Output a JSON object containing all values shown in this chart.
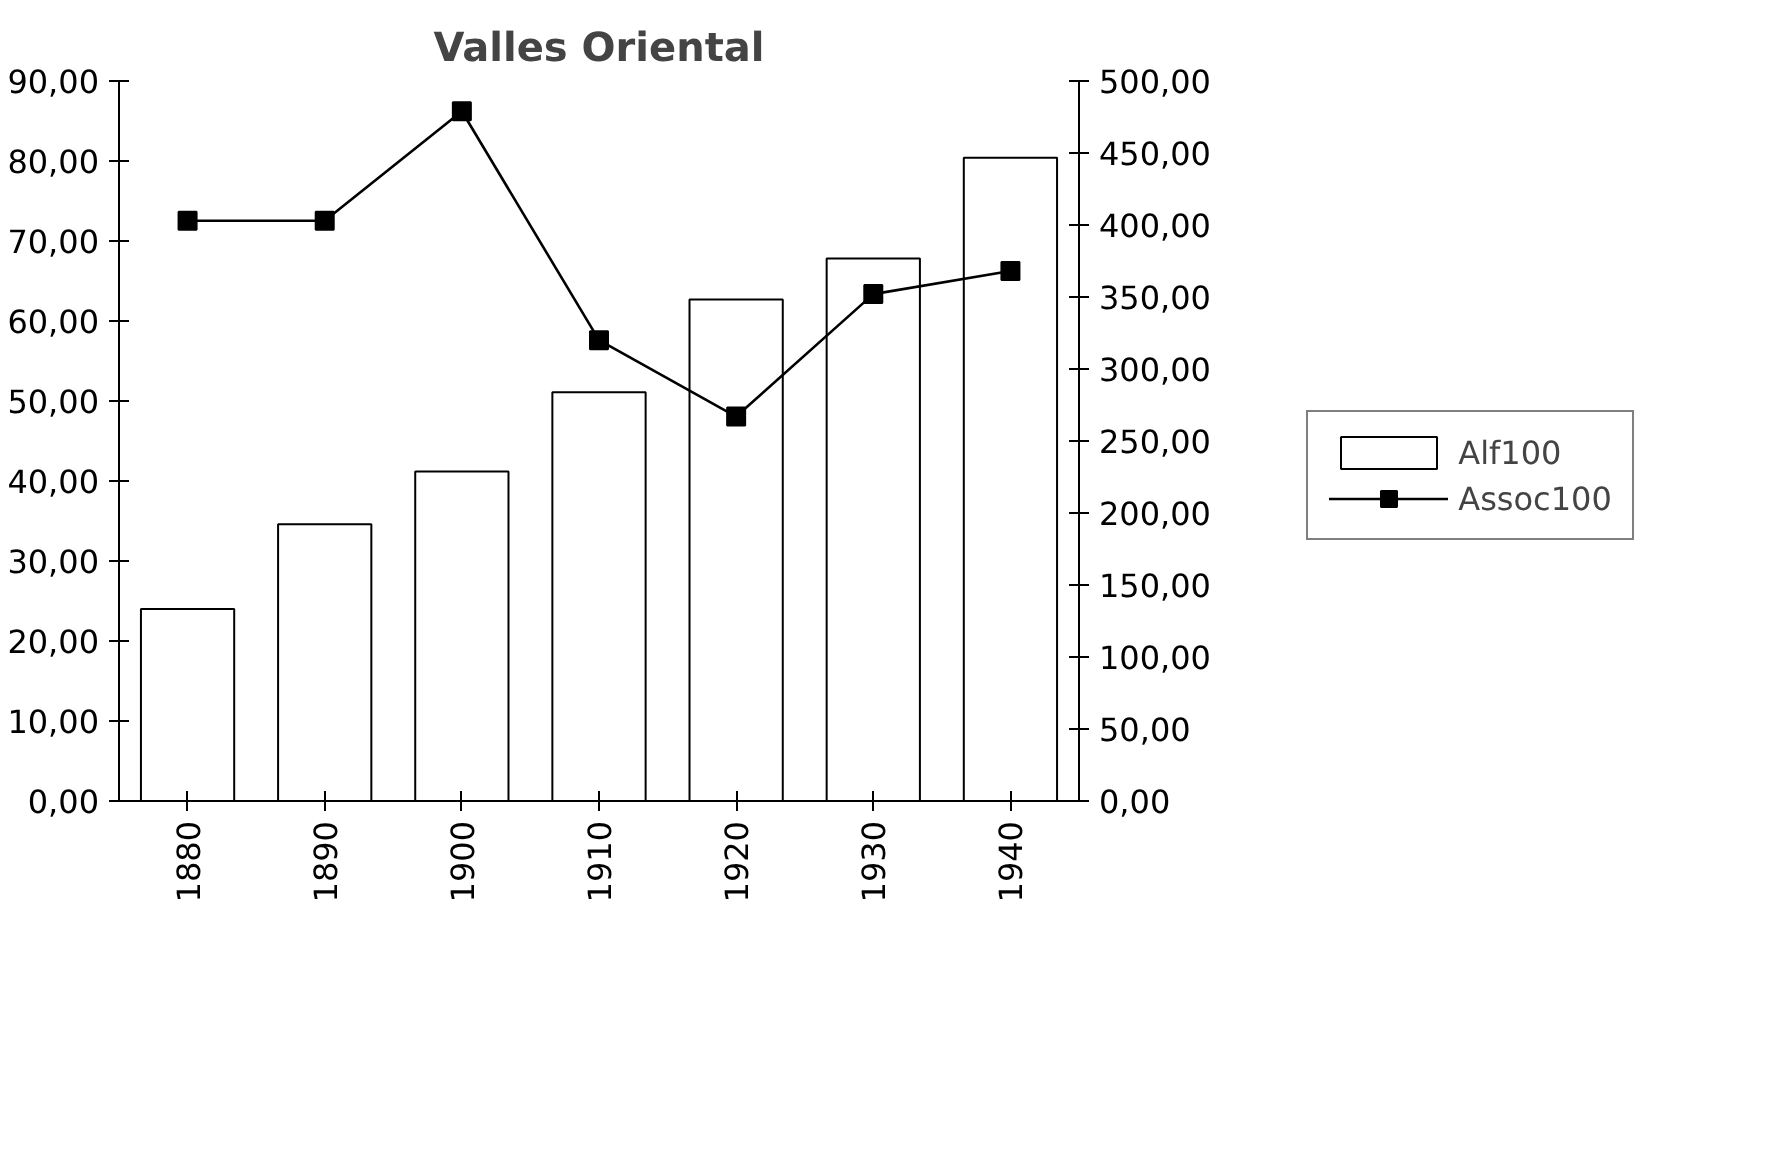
{
  "chart_data": {
    "type": "bar",
    "title": "Valles Oriental",
    "categories": [
      "1880",
      "1890",
      "1900",
      "1910",
      "1920",
      "1930",
      "1940"
    ],
    "series": [
      {
        "name": "Alf100",
        "color": "#ffffff",
        "values": [
          24.0,
          34.6,
          41.2,
          51.1,
          62.7,
          67.8,
          80.4
        ]
      },
      {
        "name": "Assoc100",
        "type": "line",
        "axis": "y2",
        "color": "#000000",
        "values": [
          403,
          403,
          479,
          320,
          267,
          352,
          368
        ]
      }
    ],
    "ylim": [
      0,
      90
    ],
    "yticks": [
      {
        "value": 0,
        "label": "0,00"
      },
      {
        "value": 10,
        "label": "10,00"
      },
      {
        "value": 20,
        "label": "20,00"
      },
      {
        "value": 30,
        "label": "30,00"
      },
      {
        "value": 40,
        "label": "40,00"
      },
      {
        "value": 50,
        "label": "50,00"
      },
      {
        "value": 60,
        "label": "60,00"
      },
      {
        "value": 70,
        "label": "70,00"
      },
      {
        "value": 80,
        "label": "80,00"
      },
      {
        "value": 90,
        "label": "90,00"
      }
    ],
    "y2lim": [
      0,
      500
    ],
    "y2ticks": [
      {
        "value": 0,
        "label": "0,00"
      },
      {
        "value": 50,
        "label": "50,00"
      },
      {
        "value": 100,
        "label": "100,00"
      },
      {
        "value": 150,
        "label": "150,00"
      },
      {
        "value": 200,
        "label": "200,00"
      },
      {
        "value": 250,
        "label": "250,00"
      },
      {
        "value": 300,
        "label": "300,00"
      },
      {
        "value": 350,
        "label": "350,00"
      },
      {
        "value": 400,
        "label": "400,00"
      },
      {
        "value": 450,
        "label": "450,00"
      },
      {
        "value": 500,
        "label": "500,00"
      }
    ],
    "marker": "square",
    "line_style": "solid",
    "grid": false,
    "legend": "right"
  }
}
